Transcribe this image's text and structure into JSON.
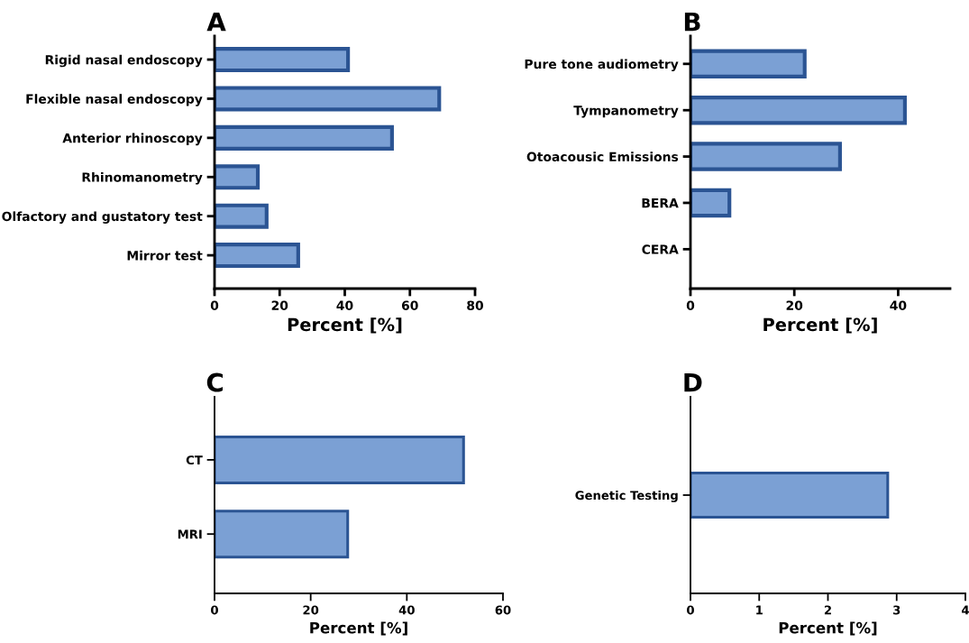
{
  "chart_data": [
    {
      "type": "bar",
      "orientation": "horizontal",
      "title": "A",
      "xlabel": "Percent [%]",
      "categories": [
        "Rigid nasal endoscopy",
        "Flexible nasal endoscopy",
        "Anterior rhinoscopy",
        "Rhinomanometry",
        "Olfactory and gustatory test",
        "Mirror test"
      ],
      "values": [
        41,
        69,
        54.5,
        13.3,
        16,
        25.7
      ],
      "color": "#7ba0d4",
      "xlim": [
        0,
        80
      ],
      "xticks": [
        0,
        20,
        40,
        60,
        80
      ],
      "grid": false
    },
    {
      "type": "bar",
      "orientation": "horizontal",
      "title": "B",
      "xlabel": "Percent [%]",
      "categories": [
        "Pure tone audiometry",
        "Tympanometry",
        "Otoacousic Emissions",
        "BERA",
        "CERA"
      ],
      "values": [
        22,
        41.3,
        28.8,
        7.5,
        0
      ],
      "color": "#7ba0d4",
      "xlim": [
        0,
        50
      ],
      "xticks": [
        0,
        20,
        40
      ],
      "grid": false
    },
    {
      "type": "bar",
      "orientation": "horizontal",
      "title": "C",
      "xlabel": "Percent [%]",
      "categories": [
        "CT",
        "MRI"
      ],
      "values": [
        51.8,
        27.7
      ],
      "color": "#7ba0d4",
      "xlim": [
        0,
        60
      ],
      "xticks": [
        0,
        20,
        40,
        60
      ],
      "grid": false
    },
    {
      "type": "bar",
      "orientation": "horizontal",
      "title": "D",
      "xlabel": "Percent [%]",
      "categories": [
        "Genetic Testing"
      ],
      "values": [
        2.87
      ],
      "color": "#7ba0d4",
      "xlim": [
        0,
        4
      ],
      "xticks": [
        0,
        1,
        2,
        3,
        4
      ],
      "grid": false
    }
  ]
}
